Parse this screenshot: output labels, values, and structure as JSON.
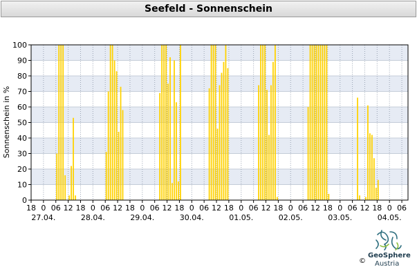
{
  "chart_data": {
    "type": "bar",
    "title": "Seefeld - Sonnenschein",
    "ylabel": "Sonnenschein in %",
    "xlabel": "",
    "ylim": [
      0,
      100
    ],
    "yticks": [
      0,
      10,
      20,
      30,
      40,
      50,
      60,
      70,
      80,
      90,
      100
    ],
    "interval_hours": 1,
    "hour_ticks": [
      "18",
      "0",
      "06",
      "12",
      "18",
      "0",
      "06",
      "12",
      "18",
      "0",
      "06",
      "12",
      "18",
      "0",
      "06",
      "12",
      "18",
      "0",
      "06",
      "12",
      "18",
      "0",
      "06",
      "12",
      "18",
      "0",
      "06",
      "12",
      "18",
      "0",
      "06"
    ],
    "date_labels": [
      "27.04.",
      "28.04.",
      "29.04.",
      "30.04.",
      "01.05.",
      "02.05.",
      "03.05.",
      "04.05."
    ],
    "bar_color": "#ffd200",
    "values": [
      0,
      0,
      0,
      0,
      0,
      0,
      0,
      0,
      0,
      0,
      0,
      0,
      30,
      100,
      100,
      100,
      16,
      0,
      3,
      22,
      53,
      3,
      0,
      0,
      0,
      0,
      0,
      0,
      0,
      0,
      0,
      0,
      0,
      0,
      0,
      0,
      31,
      70,
      100,
      100,
      90,
      83,
      44,
      73,
      58,
      0,
      0,
      0,
      0,
      0,
      0,
      0,
      0,
      0,
      0,
      0,
      0,
      0,
      0,
      0,
      0,
      0,
      69,
      100,
      100,
      100,
      75,
      92,
      11,
      90,
      63,
      12,
      100,
      0,
      0,
      0,
      0,
      0,
      0,
      0,
      0,
      0,
      0,
      0,
      0,
      0,
      72,
      100,
      100,
      100,
      46,
      74,
      82,
      89,
      100,
      85,
      0,
      0,
      0,
      0,
      0,
      0,
      0,
      0,
      0,
      0,
      0,
      0,
      0,
      0,
      74,
      100,
      100,
      100,
      71,
      42,
      74,
      89,
      100,
      2,
      0,
      0,
      0,
      0,
      0,
      0,
      0,
      0,
      0,
      0,
      0,
      0,
      0,
      0,
      60,
      100,
      100,
      100,
      100,
      100,
      100,
      100,
      100,
      100,
      4,
      0,
      0,
      0,
      0,
      0,
      0,
      0,
      0,
      0,
      0,
      0,
      0,
      0,
      66,
      3,
      0,
      0,
      2,
      61,
      43,
      42,
      27,
      8,
      13,
      0,
      0,
      0,
      0,
      0,
      0,
      0,
      0,
      0,
      0,
      0,
      0,
      0
    ]
  },
  "logo": {
    "name": "GeoSphere",
    "country": "Austria",
    "copyright": "©"
  }
}
